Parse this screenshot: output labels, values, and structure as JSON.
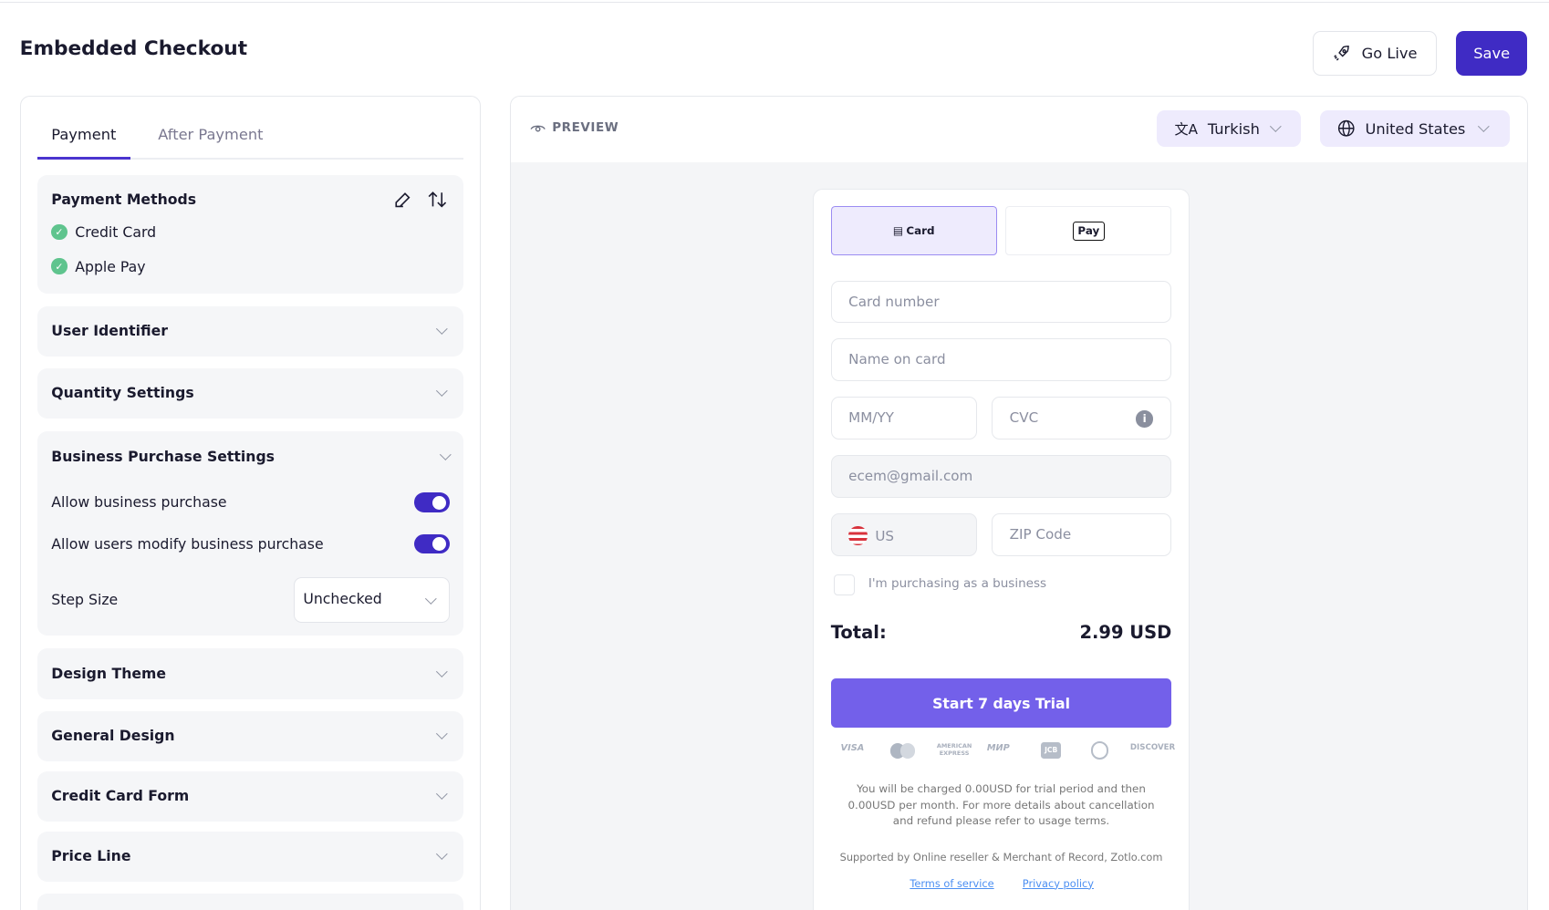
{
  "header": {
    "title": "Embedded Checkout",
    "go_live": "Go Live",
    "save": "Save"
  },
  "tabs": [
    "Payment",
    "After Payment"
  ],
  "payment_methods": {
    "title": "Payment Methods",
    "items": [
      "Credit Card",
      "Apple Pay"
    ]
  },
  "sections": {
    "user_identifier": "User Identifier",
    "quantity": "Quantity Settings",
    "business": "Business Purchase Settings",
    "design_theme": "Design Theme",
    "general_design": "General Design",
    "credit_card_form": "Credit Card Form",
    "price_line": "Price Line"
  },
  "business": {
    "allow": "Allow business purchase",
    "allow_on": true,
    "modify": "Allow users modify business purchase",
    "modify_on": true,
    "step_label": "Step Size",
    "step_value": "Unchecked"
  },
  "preview": {
    "label": "PREVIEW",
    "language": "Turkish",
    "country": "United States"
  },
  "checkout": {
    "card_tab": "Card",
    "apple_tab": "Pay",
    "card_number": "Card number",
    "name": "Name on card",
    "expiry": "MM/YY",
    "cvc": "CVC",
    "email": "ecem@gmail.com",
    "country": "US",
    "zip": "ZIP Code",
    "business_check": "I'm purchasing as a business",
    "total_label": "Total:",
    "total_value": "2.99 USD",
    "cta": "Start 7 days Trial",
    "logos": [
      "VISA",
      "AMERICAN EXPRESS",
      "МИР",
      "JCB",
      "DISCOVER"
    ],
    "terms_line1": "You will be charged 0.00USD for trial period and then",
    "terms_line2": "0.00USD per month. For more details about cancellation",
    "terms_line3": "and refund please refer to usage terms.",
    "supported": "Supported by Online reseller & Merchant of Record, Zotlo.com",
    "terms_link": "Terms of service",
    "privacy_link": "Privacy policy"
  },
  "colors": {
    "primary": "#3f2bc4",
    "cta": "#7360ea",
    "success": "#5fc48e"
  }
}
